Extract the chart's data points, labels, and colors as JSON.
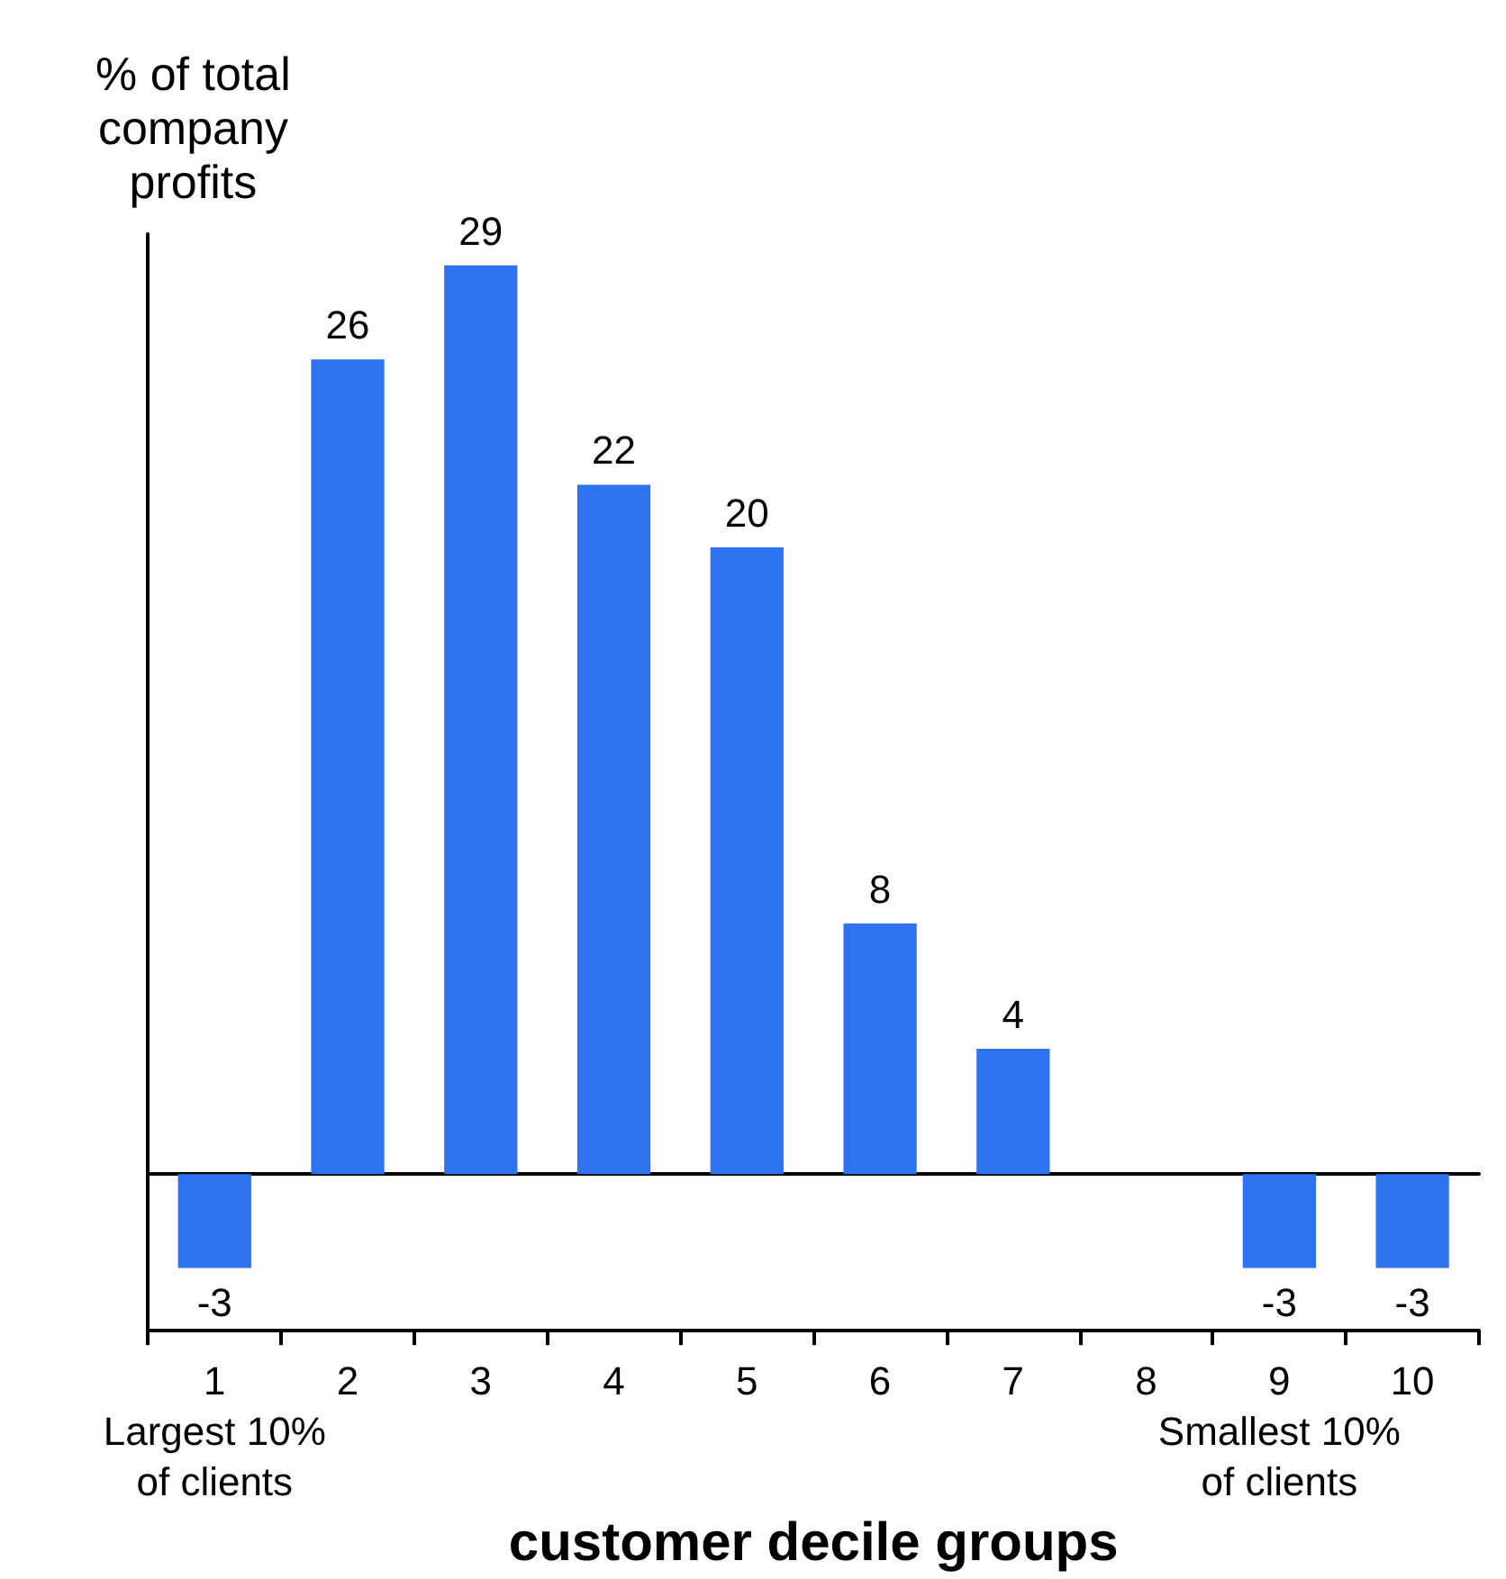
{
  "chart_data": {
    "type": "bar",
    "xlabel": "customer decile groups",
    "ylabel": "% of total company profits",
    "categories": [
      "1\nLargest 10%\nof clients",
      "2",
      "3",
      "4",
      "5",
      "6",
      "7",
      "8",
      "9\nSmallest 10%\nof clients",
      "10"
    ],
    "values": [
      -3,
      26,
      29,
      22,
      20,
      8,
      4,
      null,
      -3,
      -3
    ],
    "color": "#2f72f0",
    "ylim": [
      -5,
      30
    ],
    "data_labels": true
  }
}
